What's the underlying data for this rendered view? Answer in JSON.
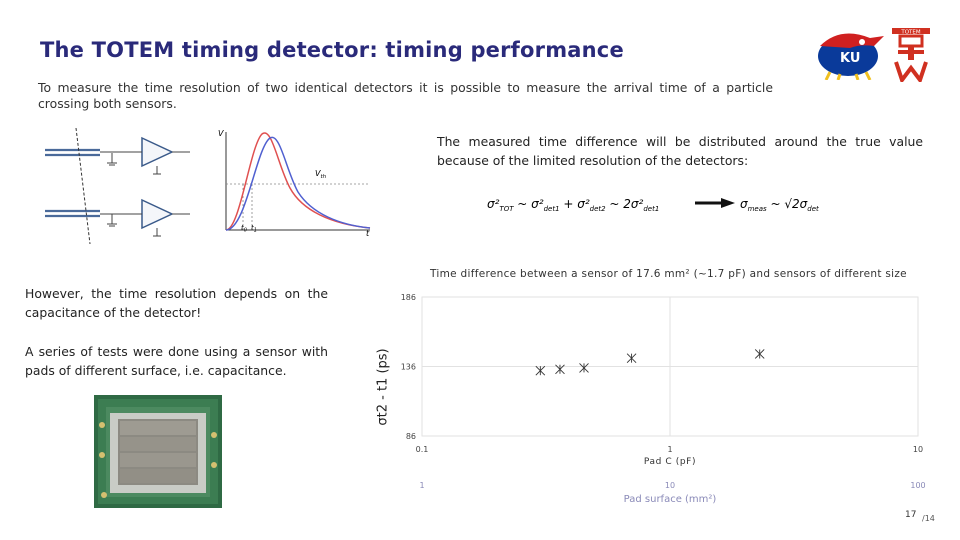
{
  "slide": {
    "title": "The TOTEM timing detector: timing performance",
    "intro": "To measure the time resolution of two identical detectors it is possible to measure the arrival time of a particle crossing both sensors.",
    "measured_text": "The measured time difference will be distributed around the true value because of the limited resolution of the detectors:",
    "however_text": "However, the time resolution depends on the capacitance of the detector!",
    "series_text": "A series of tests were done using a sensor with pads of different surface, i.e. capacitance.",
    "page_number": "17",
    "page_total": "/14"
  },
  "diagram": {
    "axis_v": "V",
    "axis_t": "t",
    "threshold_label": "V",
    "threshold_sub": "th",
    "t0_label": "t",
    "t0_sub": "0",
    "t1_label": "t",
    "t1_sub": "1"
  },
  "logos": {
    "ku_text": "KU",
    "totem_text": "TOTEM"
  },
  "colors": {
    "title": "#2a2a7a",
    "pulse_red": "#e05050",
    "pulse_blue": "#5060d0",
    "ku_blue": "#0a3a9a",
    "ku_red": "#d02020",
    "totem_red": "#d03020"
  },
  "chart_data": {
    "type": "scatter",
    "title": "Time difference between a sensor of 17.6 mm² (~1.7 pF) and sensors of different size",
    "ylabel": "σt2 - t1 (ps)",
    "xlabel": "Pad C (pF)",
    "x_scale": "log",
    "xlim": [
      0.1,
      10
    ],
    "ylim": [
      86,
      186
    ],
    "x_ticks": [
      "0.1",
      "1",
      "10"
    ],
    "y_ticks": [
      "186",
      "136",
      "86"
    ],
    "secondary_xlabel": "Pad surface (mm²)",
    "secondary_ticks": [
      "1",
      "10",
      "100"
    ],
    "grid": true,
    "points": [
      {
        "x": 0.3,
        "y": 133
      },
      {
        "x": 0.36,
        "y": 134
      },
      {
        "x": 0.45,
        "y": 135
      },
      {
        "x": 0.7,
        "y": 142
      },
      {
        "x": 2.3,
        "y": 145
      }
    ]
  }
}
